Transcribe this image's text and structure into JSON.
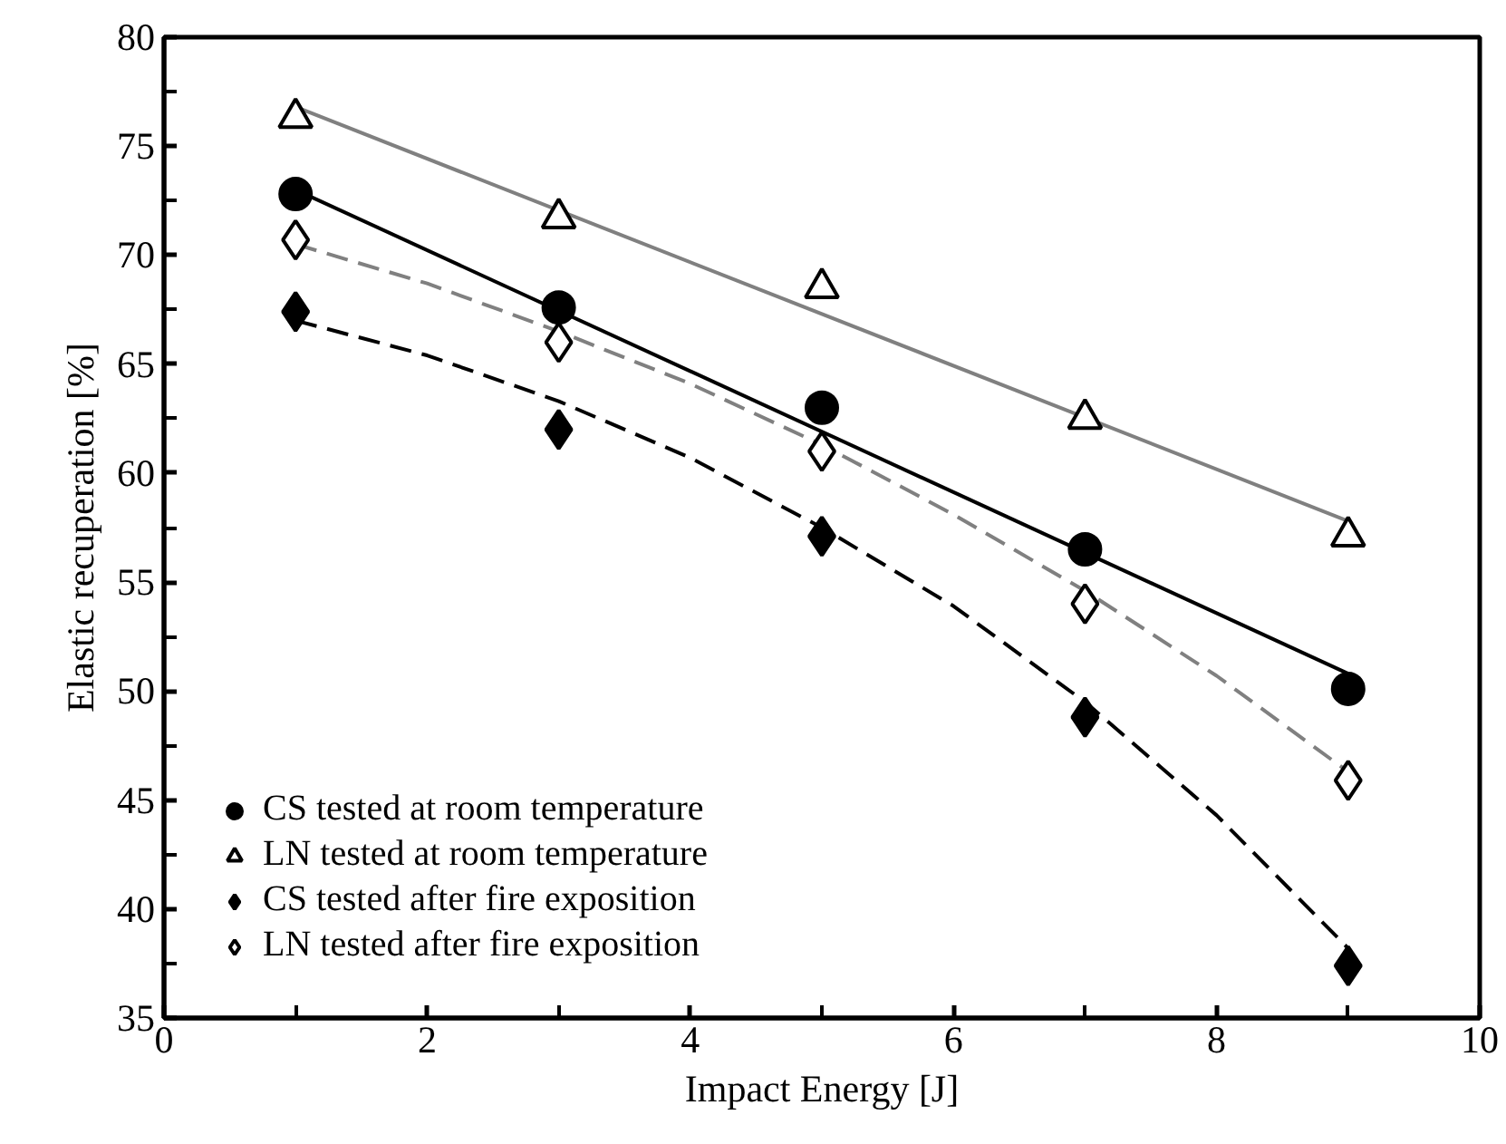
{
  "chart_data": {
    "type": "scatter",
    "xlabel": "Impact Energy [J]",
    "ylabel": "Elastic recuperation [%]",
    "xlim": [
      0,
      10
    ],
    "xticks": [
      0,
      2,
      4,
      6,
      8,
      10
    ],
    "ylim": [
      35,
      80
    ],
    "yticks": [
      35,
      40,
      45,
      50,
      55,
      60,
      65,
      70,
      75,
      80
    ],
    "grid": false,
    "legend": "bottom left",
    "series": [
      {
        "name": "CS tested at room temperature",
        "color": "#000000",
        "marker": "circle",
        "x": [
          1,
          3,
          5,
          7,
          9
        ],
        "values": [
          72.8,
          67.6,
          63.0,
          56.5,
          50.1
        ]
      },
      {
        "name": "LN tested at room temperature",
        "color": "#ffffff",
        "marker": "triangle",
        "x": [
          1,
          3,
          5,
          7,
          9
        ],
        "values": [
          76.3,
          71.7,
          68.5,
          62.5,
          57.1
        ]
      },
      {
        "name": "CS tested after fire exposition",
        "color": "#000000",
        "marker": "diamond",
        "x": [
          1,
          3,
          5,
          7,
          9
        ],
        "values": [
          67.4,
          62.0,
          57.1,
          48.8,
          37.4
        ]
      },
      {
        "name": "LN tested after fire exposition",
        "color": "#ffffff",
        "marker": "diamond",
        "x": [
          1,
          3,
          5,
          7,
          9
        ],
        "values": [
          70.7,
          66.0,
          61.0,
          54.0,
          45.9
        ]
      },
      {
        "type": "line",
        "color": "#000000",
        "line_style": "solid",
        "x": [
          1,
          9
        ],
        "values": [
          73.0,
          50.8
        ]
      },
      {
        "type": "line",
        "color": "#808080",
        "line_style": "solid",
        "x": [
          1,
          9
        ],
        "values": [
          76.8,
          57.8
        ]
      },
      {
        "type": "line",
        "color": "#000000",
        "line_style": "dashed",
        "x": [
          1,
          2,
          3,
          4,
          5,
          6,
          7,
          8,
          9
        ],
        "values": [
          67.0,
          65.4,
          63.3,
          60.7,
          57.5,
          53.9,
          49.5,
          44.3,
          38.2
        ]
      },
      {
        "type": "line",
        "color": "#808080",
        "line_style": "dashed",
        "x": [
          1,
          2,
          3,
          4,
          5,
          6,
          7,
          8,
          9
        ],
        "values": [
          70.5,
          68.7,
          66.5,
          64.1,
          61.3,
          58.1,
          54.6,
          50.7,
          46.3
        ]
      }
    ]
  }
}
